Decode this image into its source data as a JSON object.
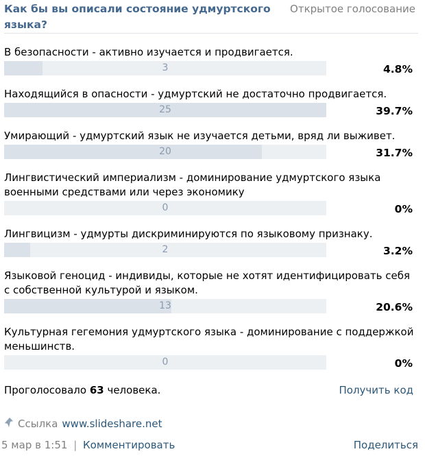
{
  "poll": {
    "question": "Как бы вы описали состояние удмуртского языка?",
    "type_label": "Открытое голосование",
    "options": [
      {
        "label": "В безопасности - активно изучается и продвигается.",
        "count": "3",
        "percent": "4.8%",
        "fraction": 0.12
      },
      {
        "label": "Находящийся в опасности - удмуртский не достаточно продвигается.",
        "count": "25",
        "percent": "39.7%",
        "fraction": 1.0
      },
      {
        "label": "Умирающий - удмуртский язык не изучается детьми, вряд ли выживет.",
        "count": "20",
        "percent": "31.7%",
        "fraction": 0.8
      },
      {
        "label": "Лингвистический империализм - доминирование удмуртского языка военными средствами или через экономику",
        "count": "0",
        "percent": "0%",
        "fraction": 0.0
      },
      {
        "label": "Лингвицизм - удмурты дискриминируются по языковому признаку.",
        "count": "2",
        "percent": "3.2%",
        "fraction": 0.08
      },
      {
        "label": "Языковой геноцид - индивиды, которые не хотят идентифицировать себя с собственной культурой и языком.",
        "count": "13",
        "percent": "20.6%",
        "fraction": 0.52
      },
      {
        "label": "Культурная гегемония удмуртского языка - доминирование с поддержкой меньшинств.",
        "count": "0",
        "percent": "0%",
        "fraction": 0.0
      }
    ],
    "votes_prefix": "Проголосовало",
    "votes_total": "63",
    "votes_suffix": "человека.",
    "get_code_label": "Получить код"
  },
  "post": {
    "link_prefix": "Ссылка",
    "link_url": "www.slideshare.net",
    "date": "5 мар в 1:51",
    "separator": "|",
    "comment_label": "Комментировать",
    "share_label": "Поделиться"
  },
  "icons": {
    "link": "link-icon"
  }
}
